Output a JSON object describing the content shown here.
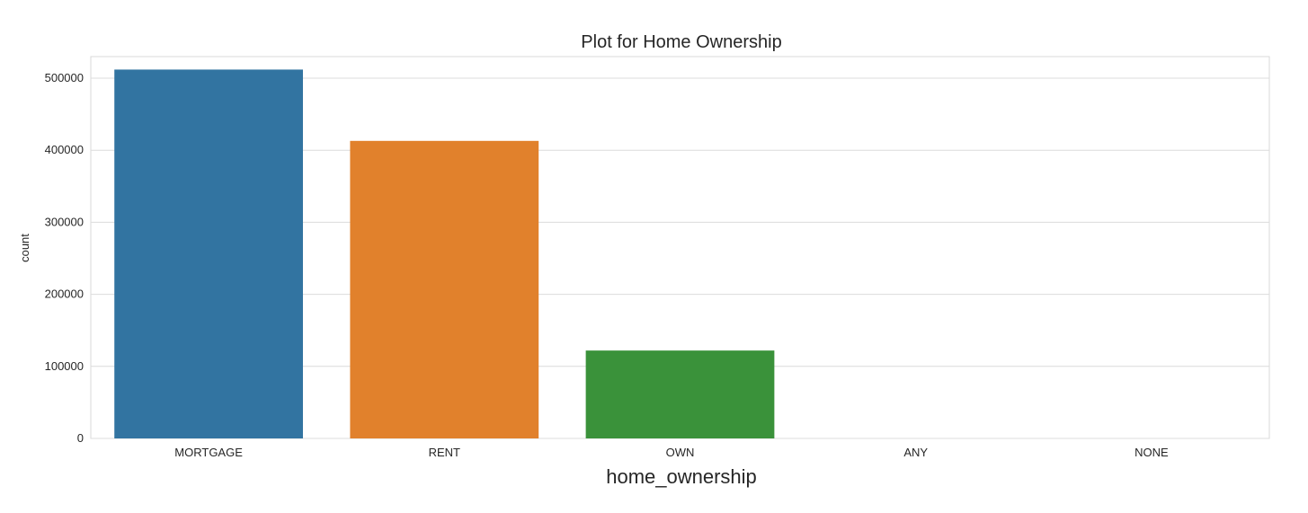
{
  "chart_data": {
    "type": "bar",
    "title": "Plot for Home Ownership",
    "xlabel": "home_ownership",
    "ylabel": "count",
    "categories": [
      "MORTGAGE",
      "RENT",
      "OWN",
      "ANY",
      "NONE"
    ],
    "values": [
      512000,
      413000,
      122000,
      0,
      0
    ],
    "colors": [
      "#3274a1",
      "#e1812c",
      "#3a923a",
      "#c03d3e",
      "#9372b2"
    ],
    "ylim": [
      0,
      530000
    ],
    "yticks": [
      0,
      100000,
      200000,
      300000,
      400000,
      500000
    ],
    "ytick_labels": [
      "0",
      "100000",
      "200000",
      "300000",
      "400000",
      "500000"
    ],
    "grid": true,
    "style": "seaborn-whitegrid"
  }
}
